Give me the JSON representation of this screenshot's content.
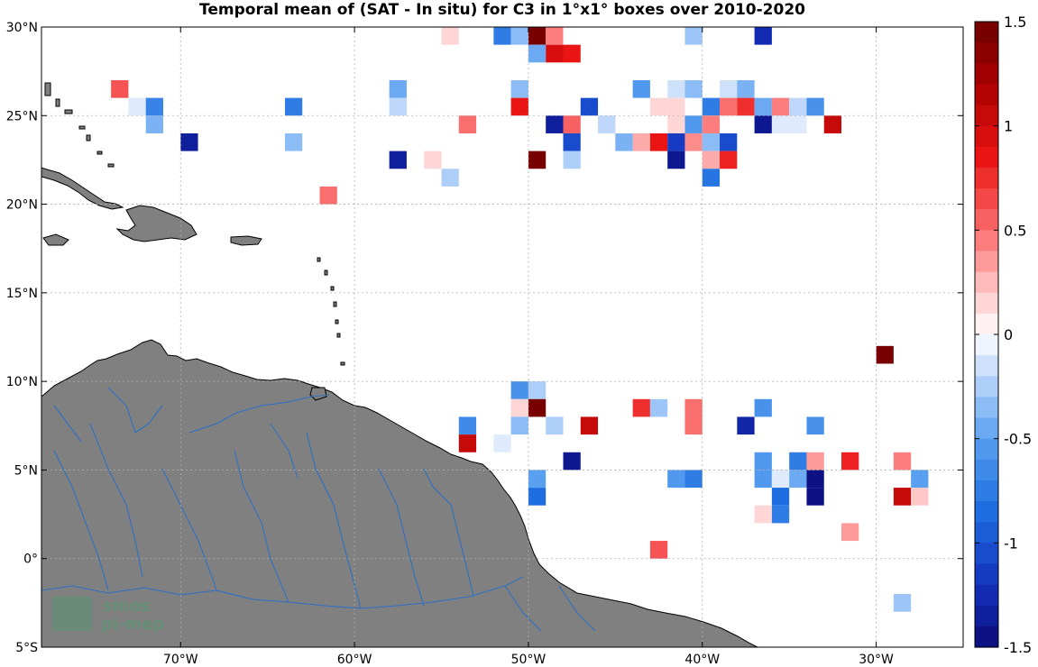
{
  "title": "Temporal mean of (SAT - In situ) for C3 in 1°x1° boxes over 2010-2020",
  "map": {
    "lon_range": [
      -78,
      -25
    ],
    "lat_range": [
      -5,
      30
    ],
    "land_color": "#808080",
    "river_color": "#2e6fc4",
    "grid": true,
    "lat_ticks": [
      {
        "value": 30,
        "label": "30°N"
      },
      {
        "value": 25,
        "label": "25°N"
      },
      {
        "value": 20,
        "label": "20°N"
      },
      {
        "value": 15,
        "label": "15°N"
      },
      {
        "value": 10,
        "label": "10°N"
      },
      {
        "value": 5,
        "label": "5°N"
      },
      {
        "value": 0,
        "label": "0°"
      },
      {
        "value": -5,
        "label": "5°S"
      }
    ],
    "lon_ticks": [
      {
        "value": -70,
        "label": "70°W"
      },
      {
        "value": -60,
        "label": "60°W"
      },
      {
        "value": -50,
        "label": "50°W"
      },
      {
        "value": -40,
        "label": "40°W"
      },
      {
        "value": -30,
        "label": "30°W"
      }
    ]
  },
  "colorbar": {
    "range": [
      -1.5,
      1.5
    ],
    "levels": 30,
    "ticks": [
      {
        "value": 1.5,
        "label": "1.5"
      },
      {
        "value": 1,
        "label": "1"
      },
      {
        "value": 0.5,
        "label": "0.5"
      },
      {
        "value": 0,
        "label": "0"
      },
      {
        "value": -0.5,
        "label": "-0.5"
      },
      {
        "value": -1,
        "label": "-1"
      },
      {
        "value": -1.5,
        "label": "-1.5"
      }
    ]
  },
  "chart_data": {
    "type": "heatmap",
    "title": "Temporal mean of (SAT - In situ) for C3 in 1°x1° boxes over 2010-2020",
    "cell_size_deg": 1,
    "cells": [
      {
        "lon": -55,
        "lat": 29,
        "v": 0.15
      },
      {
        "lon": -52,
        "lat": 29,
        "v": -0.75
      },
      {
        "lon": -51,
        "lat": 29,
        "v": -0.35
      },
      {
        "lon": -50,
        "lat": 29,
        "v": 1.45
      },
      {
        "lon": -49,
        "lat": 29,
        "v": 0.45
      },
      {
        "lon": -41,
        "lat": 29,
        "v": -0.3
      },
      {
        "lon": -37,
        "lat": 29,
        "v": -1.25
      },
      {
        "lon": -50,
        "lat": 28,
        "v": -0.45
      },
      {
        "lon": -49,
        "lat": 28,
        "v": 0.95
      },
      {
        "lon": -48,
        "lat": 28,
        "v": 0.85
      },
      {
        "lon": -74,
        "lat": 26,
        "v": 0.6
      },
      {
        "lon": -58,
        "lat": 26,
        "v": -0.45
      },
      {
        "lon": -51,
        "lat": 26,
        "v": -0.35
      },
      {
        "lon": -44,
        "lat": 26,
        "v": -0.55
      },
      {
        "lon": -42,
        "lat": 26,
        "v": -0.15
      },
      {
        "lon": -41,
        "lat": 26,
        "v": -0.35
      },
      {
        "lon": -39,
        "lat": 26,
        "v": -0.15
      },
      {
        "lon": -38,
        "lat": 26,
        "v": -0.4
      },
      {
        "lon": -73,
        "lat": 25,
        "v": -0.1
      },
      {
        "lon": -72,
        "lat": 25,
        "v": -0.7
      },
      {
        "lon": -64,
        "lat": 25,
        "v": -0.75
      },
      {
        "lon": -58,
        "lat": 25,
        "v": -0.2
      },
      {
        "lon": -51,
        "lat": 25,
        "v": 0.85
      },
      {
        "lon": -47,
        "lat": 25,
        "v": -1.05
      },
      {
        "lon": -43,
        "lat": 25,
        "v": 0.15
      },
      {
        "lon": -42,
        "lat": 25,
        "v": 0.15
      },
      {
        "lon": -40,
        "lat": 25,
        "v": -0.75
      },
      {
        "lon": -39,
        "lat": 25,
        "v": 0.5
      },
      {
        "lon": -38,
        "lat": 25,
        "v": 0.75
      },
      {
        "lon": -37,
        "lat": 25,
        "v": -0.45
      },
      {
        "lon": -36,
        "lat": 25,
        "v": 0.45
      },
      {
        "lon": -35,
        "lat": 25,
        "v": -0.2
      },
      {
        "lon": -34,
        "lat": 25,
        "v": -0.6
      },
      {
        "lon": -72,
        "lat": 24,
        "v": -0.4
      },
      {
        "lon": -54,
        "lat": 24,
        "v": 0.5
      },
      {
        "lon": -49,
        "lat": 24,
        "v": -1.35
      },
      {
        "lon": -48,
        "lat": 24,
        "v": 0.55
      },
      {
        "lon": -46,
        "lat": 24,
        "v": -0.2
      },
      {
        "lon": -42,
        "lat": 24,
        "v": 0.15
      },
      {
        "lon": -41,
        "lat": 24,
        "v": -0.55
      },
      {
        "lon": -40,
        "lat": 24,
        "v": 0.45
      },
      {
        "lon": -37,
        "lat": 24,
        "v": -1.4
      },
      {
        "lon": -36,
        "lat": 24,
        "v": -0.1
      },
      {
        "lon": -35,
        "lat": 24,
        "v": -0.1
      },
      {
        "lon": -33,
        "lat": 24,
        "v": 1.05
      },
      {
        "lon": -70,
        "lat": 23,
        "v": -1.35
      },
      {
        "lon": -64,
        "lat": 23,
        "v": -0.35
      },
      {
        "lon": -48,
        "lat": 23,
        "v": -1.05
      },
      {
        "lon": -45,
        "lat": 23,
        "v": -0.4
      },
      {
        "lon": -44,
        "lat": 23,
        "v": 0.3
      },
      {
        "lon": -43,
        "lat": 23,
        "v": 0.85
      },
      {
        "lon": -42,
        "lat": 23,
        "v": -1.15
      },
      {
        "lon": -41,
        "lat": 23,
        "v": 0.4
      },
      {
        "lon": -40,
        "lat": 23,
        "v": -0.35
      },
      {
        "lon": -39,
        "lat": 23,
        "v": -1.05
      },
      {
        "lon": -58,
        "lat": 22,
        "v": -1.35
      },
      {
        "lon": -56,
        "lat": 22,
        "v": 0.15
      },
      {
        "lon": -50,
        "lat": 22,
        "v": 1.45
      },
      {
        "lon": -48,
        "lat": 22,
        "v": -0.25
      },
      {
        "lon": -42,
        "lat": 22,
        "v": -1.4
      },
      {
        "lon": -40,
        "lat": 22,
        "v": 0.3
      },
      {
        "lon": -39,
        "lat": 22,
        "v": 0.8
      },
      {
        "lon": -55,
        "lat": 21,
        "v": -0.25
      },
      {
        "lon": -40,
        "lat": 21,
        "v": -0.8
      },
      {
        "lon": -62,
        "lat": 20,
        "v": 0.5
      },
      {
        "lon": -30,
        "lat": 11,
        "v": 1.45
      },
      {
        "lon": -51,
        "lat": 9,
        "v": -0.6
      },
      {
        "lon": -50,
        "lat": 9,
        "v": -0.25
      },
      {
        "lon": -51,
        "lat": 8,
        "v": 0.15
      },
      {
        "lon": -50,
        "lat": 8,
        "v": 1.45
      },
      {
        "lon": -44,
        "lat": 8,
        "v": 0.75
      },
      {
        "lon": -43,
        "lat": 8,
        "v": -0.3
      },
      {
        "lon": -41,
        "lat": 8,
        "v": 0.5
      },
      {
        "lon": -37,
        "lat": 8,
        "v": -0.6
      },
      {
        "lon": -54,
        "lat": 7,
        "v": -0.65
      },
      {
        "lon": -51,
        "lat": 7,
        "v": -0.35
      },
      {
        "lon": -49,
        "lat": 7,
        "v": -0.25
      },
      {
        "lon": -47,
        "lat": 7,
        "v": 1.05
      },
      {
        "lon": -41,
        "lat": 7,
        "v": 0.5
      },
      {
        "lon": -38,
        "lat": 7,
        "v": -1.3
      },
      {
        "lon": -34,
        "lat": 7,
        "v": -0.6
      },
      {
        "lon": -54,
        "lat": 6,
        "v": 1.05
      },
      {
        "lon": -52,
        "lat": 6,
        "v": -0.1
      },
      {
        "lon": -25,
        "lat": 6,
        "v": 0.8
      },
      {
        "lon": -48,
        "lat": 5,
        "v": -1.4
      },
      {
        "lon": -37,
        "lat": 5,
        "v": -0.55
      },
      {
        "lon": -35,
        "lat": 5,
        "v": -0.75
      },
      {
        "lon": -34,
        "lat": 5,
        "v": 0.35
      },
      {
        "lon": -32,
        "lat": 5,
        "v": 0.8
      },
      {
        "lon": -29,
        "lat": 5,
        "v": 0.45
      },
      {
        "lon": -25,
        "lat": 5,
        "v": 0.5
      },
      {
        "lon": -50,
        "lat": 4,
        "v": -0.5
      },
      {
        "lon": -42,
        "lat": 4,
        "v": -0.55
      },
      {
        "lon": -41,
        "lat": 4,
        "v": -0.75
      },
      {
        "lon": -37,
        "lat": 4,
        "v": -0.55
      },
      {
        "lon": -36,
        "lat": 4,
        "v": -0.1
      },
      {
        "lon": -35,
        "lat": 4,
        "v": -0.45
      },
      {
        "lon": -34,
        "lat": 4,
        "v": -1.45
      },
      {
        "lon": -28,
        "lat": 4,
        "v": -0.5
      },
      {
        "lon": -25,
        "lat": 4,
        "v": -0.1
      },
      {
        "lon": -50,
        "lat": 3,
        "v": -0.85
      },
      {
        "lon": -36,
        "lat": 3,
        "v": -0.85
      },
      {
        "lon": -34,
        "lat": 3,
        "v": -1.45
      },
      {
        "lon": -29,
        "lat": 3,
        "v": 1.05
      },
      {
        "lon": -28,
        "lat": 3,
        "v": 0.2
      },
      {
        "lon": -25,
        "lat": 3,
        "v": 0.3
      },
      {
        "lon": -37,
        "lat": 2,
        "v": 0.15
      },
      {
        "lon": -36,
        "lat": 2,
        "v": -0.75
      },
      {
        "lon": -25,
        "lat": 2,
        "v": 0.3
      },
      {
        "lon": -32,
        "lat": 1,
        "v": 0.35
      },
      {
        "lon": -43,
        "lat": 0,
        "v": 0.6
      },
      {
        "lon": -29,
        "lat": -3,
        "v": -0.3
      }
    ]
  },
  "watermark": {
    "line1": "smos",
    "line2": "pi-mep"
  }
}
